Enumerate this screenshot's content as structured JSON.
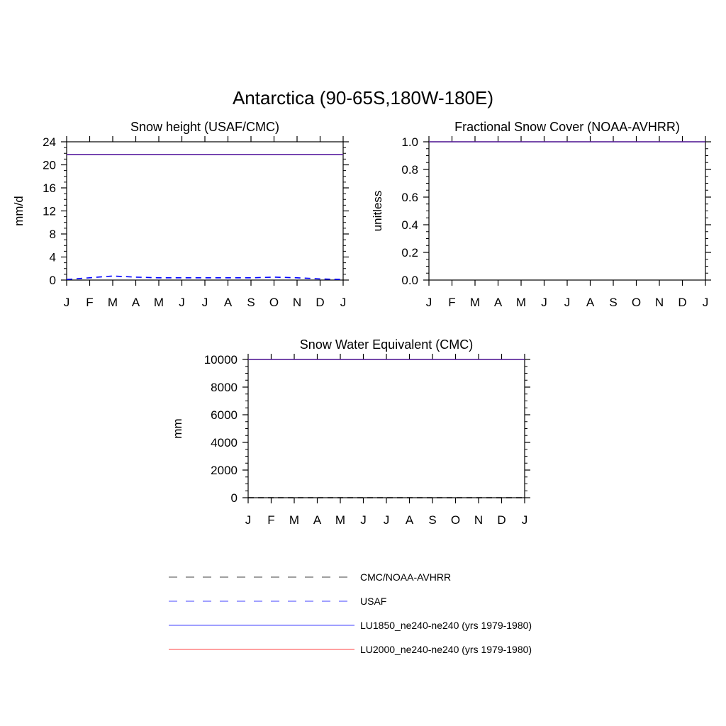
{
  "figure": {
    "title": "Antarctica (90-65S,180W-180E)"
  },
  "chart_data": [
    {
      "type": "line",
      "title": "Snow height (USAF/CMC)",
      "ylabel": "mm/d",
      "xlabel": "",
      "x_ticks": [
        "J",
        "F",
        "M",
        "A",
        "M",
        "J",
        "J",
        "A",
        "S",
        "O",
        "N",
        "D",
        "J"
      ],
      "y_ticks": [
        "0",
        "4",
        "8",
        "12",
        "16",
        "20",
        "24"
      ],
      "ylim": [
        0,
        24
      ],
      "series": [
        {
          "name": "LU1850_ne240-ne240 (yrs 1979-1980)",
          "values": [
            21.8,
            21.8,
            21.8,
            21.8,
            21.8,
            21.8,
            21.8,
            21.8,
            21.8,
            21.8,
            21.8,
            21.8,
            21.8
          ]
        },
        {
          "name": "USAF",
          "values": [
            0.1,
            0.4,
            0.7,
            0.5,
            0.4,
            0.4,
            0.4,
            0.4,
            0.4,
            0.5,
            0.4,
            0.2,
            0.1
          ]
        }
      ]
    },
    {
      "type": "line",
      "title": "Fractional Snow Cover (NOAA-AVHRR)",
      "ylabel": "unitless",
      "xlabel": "",
      "x_ticks": [
        "J",
        "F",
        "M",
        "A",
        "M",
        "J",
        "J",
        "A",
        "S",
        "O",
        "N",
        "D",
        "J"
      ],
      "y_ticks": [
        "0.0",
        "0.2",
        "0.4",
        "0.6",
        "0.8",
        "1.0"
      ],
      "ylim": [
        0,
        1.0
      ],
      "series": [
        {
          "name": "LU1850_ne240-ne240 (yrs 1979-1980)",
          "values": [
            1,
            1,
            1,
            1,
            1,
            1,
            1,
            1,
            1,
            1,
            1,
            1,
            1
          ]
        }
      ]
    },
    {
      "type": "line",
      "title": "Snow Water Equivalent (CMC)",
      "ylabel": "mm",
      "xlabel": "",
      "x_ticks": [
        "J",
        "F",
        "M",
        "A",
        "M",
        "J",
        "J",
        "A",
        "S",
        "O",
        "N",
        "D",
        "J"
      ],
      "y_ticks": [
        "0",
        "2000",
        "4000",
        "6000",
        "8000",
        "10000"
      ],
      "ylim": [
        0,
        10000
      ],
      "series": [
        {
          "name": "LU1850_ne240-ne240 (yrs 1979-1980)",
          "values": [
            10000,
            10000,
            10000,
            10000,
            10000,
            10000,
            10000,
            10000,
            10000,
            10000,
            10000,
            10000,
            10000
          ]
        },
        {
          "name": "CMC/NOAA-AVHRR",
          "values": [
            0,
            0,
            0,
            0,
            0,
            0,
            0,
            0,
            0,
            0,
            0,
            0,
            0
          ]
        }
      ]
    }
  ],
  "legend": {
    "entries": [
      {
        "label": "CMC/NOAA-AVHRR",
        "color": "#000000",
        "dashed": true
      },
      {
        "label": "USAF",
        "color": "#0000ff",
        "dashed": true
      },
      {
        "label": "LU1850_ne240-ne240 (yrs 1979-1980)",
        "color": "#0000ff",
        "dashed": false
      },
      {
        "label": "LU2000_ne240-ne240 (yrs 1979-1980)",
        "color": "#ff0000",
        "dashed": false
      }
    ]
  },
  "colors": {
    "obs": "#000000",
    "usaf": "#0000ff",
    "lu1850": "#0000ff",
    "lu2000": "#ff0000",
    "overlap": "#5a1ea0"
  }
}
